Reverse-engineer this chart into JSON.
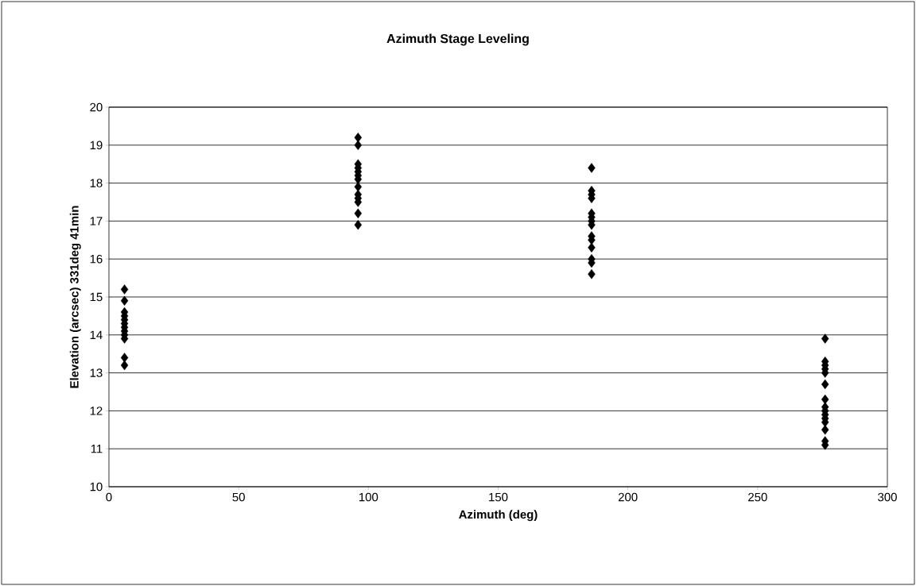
{
  "chart_data": {
    "type": "scatter",
    "title": "Azimuth Stage Leveling",
    "xlabel": "Azimuth (deg)",
    "ylabel": "Elevation (arcsec) 331deg 41min",
    "x": [
      6,
      6,
      6,
      6,
      6,
      6,
      6,
      6,
      6,
      6,
      6,
      6,
      96,
      96,
      96,
      96,
      96,
      96,
      96,
      96,
      96,
      96,
      96,
      96,
      96,
      186,
      186,
      186,
      186,
      186,
      186,
      186,
      186,
      186,
      186,
      186,
      186,
      186,
      186,
      276,
      276,
      276,
      276,
      276,
      276,
      276,
      276,
      276,
      276,
      276,
      276,
      276,
      276,
      276
    ],
    "values": [
      15.2,
      14.9,
      14.6,
      14.5,
      14.4,
      14.3,
      14.2,
      14.1,
      14.0,
      13.9,
      13.4,
      13.2,
      19.2,
      19.0,
      18.5,
      18.4,
      18.3,
      18.2,
      18.1,
      17.9,
      17.7,
      17.6,
      17.5,
      17.2,
      16.9,
      18.4,
      17.8,
      17.7,
      17.6,
      17.2,
      17.1,
      17.0,
      16.9,
      16.6,
      16.5,
      16.3,
      16.0,
      15.9,
      15.6,
      13.9,
      13.3,
      13.2,
      13.1,
      13.0,
      12.7,
      12.3,
      12.1,
      12.0,
      11.9,
      11.8,
      11.7,
      11.5,
      11.2,
      11.1
    ],
    "color": "#000000",
    "marker": "diamond",
    "xlim": [
      0,
      300
    ],
    "xticks": [
      0,
      50,
      100,
      150,
      200,
      250,
      300
    ],
    "ylim": [
      10,
      20
    ],
    "yticks": [
      10,
      11,
      12,
      13,
      14,
      15,
      16,
      17,
      18,
      19,
      20
    ],
    "grid": "y"
  }
}
